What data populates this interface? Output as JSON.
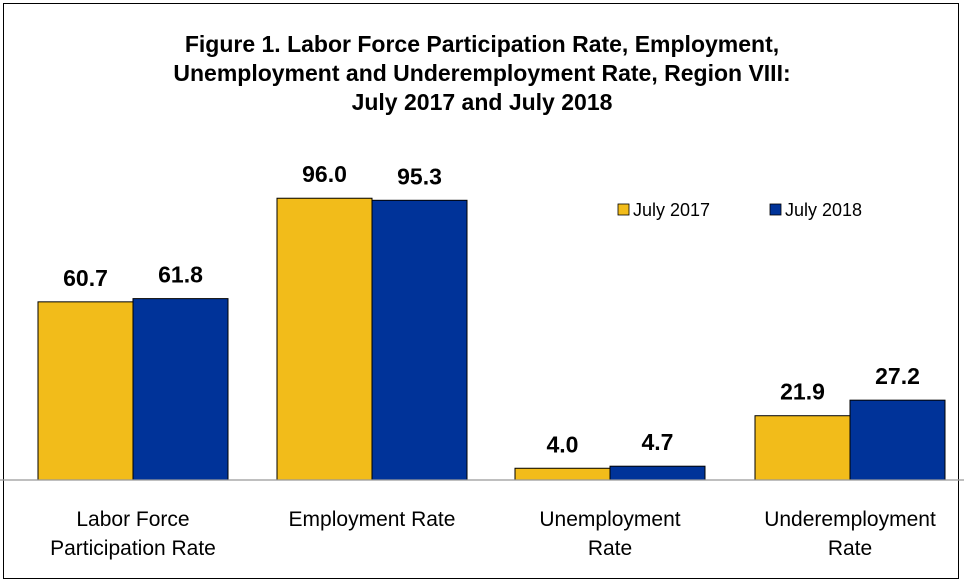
{
  "chart_data": {
    "type": "bar",
    "title_lines": [
      "Figure 1. Labor Force Participation Rate, Employment,",
      "Unemployment and Underemployment Rate, Region VIII:",
      "July 2017 and July 2018"
    ],
    "categories": [
      [
        "Labor Force",
        "Participation Rate"
      ],
      [
        "Employment Rate"
      ],
      [
        "Unemployment",
        "Rate"
      ],
      [
        "Underemployment",
        "Rate"
      ]
    ],
    "series": [
      {
        "name": "July 2017",
        "color": "#F2BC1A",
        "values": [
          60.7,
          96.0,
          4.0,
          21.9
        ],
        "labels": [
          "60.7",
          "96.0",
          "4.0",
          "21.9"
        ]
      },
      {
        "name": "July 2018",
        "color": "#003399",
        "values": [
          61.8,
          95.3,
          4.7,
          27.2
        ],
        "labels": [
          "61.8",
          "95.3",
          "4.7",
          "27.2"
        ]
      }
    ],
    "ylim": [
      0,
      100
    ],
    "grid": false,
    "legend_position": "top-right",
    "xlabel": "",
    "ylabel": ""
  }
}
